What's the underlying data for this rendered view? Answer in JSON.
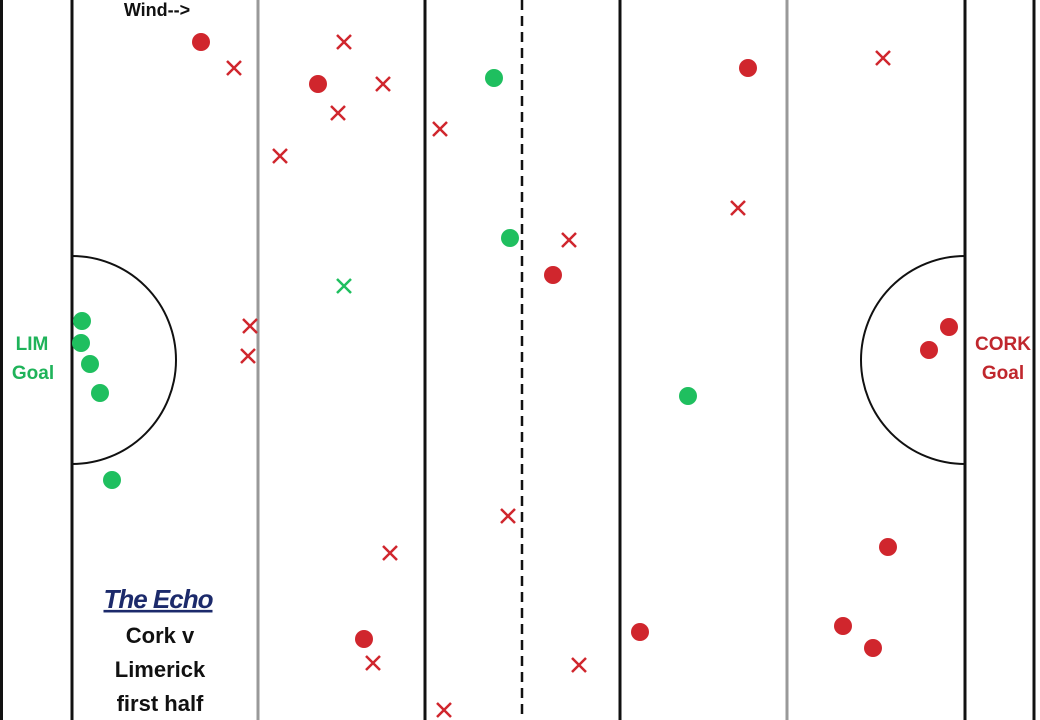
{
  "pitch": {
    "wind_label": "Wind-->",
    "left_goal": {
      "team": "LIM",
      "label": "Goal"
    },
    "right_goal": {
      "team": "CORK",
      "label": "Goal"
    }
  },
  "caption": {
    "brand": "The Echo",
    "lines": [
      "Cork v",
      "Limerick",
      "first half"
    ]
  }
}
